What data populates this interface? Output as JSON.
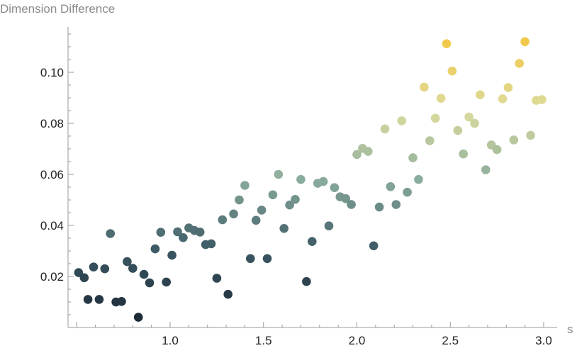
{
  "chart_data": {
    "type": "scatter",
    "title": "",
    "xlabel": "s",
    "ylabel": "Dimension Difference",
    "xlim": [
      0.45,
      3.05
    ],
    "ylim": [
      -0.002,
      0.12
    ],
    "x_ticks_major": [
      1.0,
      1.5,
      2.0,
      2.5,
      3.0
    ],
    "x_tick_labels": [
      "1.0",
      "1.5",
      "2.0",
      "2.5",
      "3.0"
    ],
    "y_ticks_major": [
      0.02,
      0.04,
      0.06,
      0.08,
      0.1
    ],
    "y_tick_labels": [
      "0.02",
      "0.04",
      "0.06",
      "0.08",
      "0.10"
    ],
    "grid": false,
    "legend": "none",
    "color_gradient": [
      "#1c2b38",
      "#3d5a66",
      "#8aac9d",
      "#dcdc9e",
      "#f2c84a"
    ],
    "points": [
      {
        "x": 0.51,
        "y": 0.0215
      },
      {
        "x": 0.54,
        "y": 0.0195
      },
      {
        "x": 0.56,
        "y": 0.011
      },
      {
        "x": 0.59,
        "y": 0.0237
      },
      {
        "x": 0.62,
        "y": 0.011
      },
      {
        "x": 0.65,
        "y": 0.023
      },
      {
        "x": 0.68,
        "y": 0.0368
      },
      {
        "x": 0.71,
        "y": 0.01
      },
      {
        "x": 0.74,
        "y": 0.0102
      },
      {
        "x": 0.77,
        "y": 0.0258
      },
      {
        "x": 0.8,
        "y": 0.0232
      },
      {
        "x": 0.83,
        "y": 0.004
      },
      {
        "x": 0.86,
        "y": 0.0208
      },
      {
        "x": 0.89,
        "y": 0.0175
      },
      {
        "x": 0.92,
        "y": 0.0308
      },
      {
        "x": 0.95,
        "y": 0.0373
      },
      {
        "x": 0.98,
        "y": 0.0178
      },
      {
        "x": 1.01,
        "y": 0.0283
      },
      {
        "x": 1.04,
        "y": 0.0375
      },
      {
        "x": 1.07,
        "y": 0.0352
      },
      {
        "x": 1.1,
        "y": 0.039
      },
      {
        "x": 1.13,
        "y": 0.038
      },
      {
        "x": 1.16,
        "y": 0.0374
      },
      {
        "x": 1.19,
        "y": 0.0325
      },
      {
        "x": 1.22,
        "y": 0.0328
      },
      {
        "x": 1.25,
        "y": 0.0193
      },
      {
        "x": 1.28,
        "y": 0.0422
      },
      {
        "x": 1.31,
        "y": 0.013
      },
      {
        "x": 1.34,
        "y": 0.0445
      },
      {
        "x": 1.37,
        "y": 0.05
      },
      {
        "x": 1.4,
        "y": 0.0557
      },
      {
        "x": 1.43,
        "y": 0.027
      },
      {
        "x": 1.46,
        "y": 0.042
      },
      {
        "x": 1.49,
        "y": 0.046
      },
      {
        "x": 1.52,
        "y": 0.027
      },
      {
        "x": 1.55,
        "y": 0.052
      },
      {
        "x": 1.58,
        "y": 0.06
      },
      {
        "x": 1.61,
        "y": 0.0388
      },
      {
        "x": 1.64,
        "y": 0.048
      },
      {
        "x": 1.67,
        "y": 0.0502
      },
      {
        "x": 1.7,
        "y": 0.058
      },
      {
        "x": 1.73,
        "y": 0.018
      },
      {
        "x": 1.76,
        "y": 0.0337
      },
      {
        "x": 1.79,
        "y": 0.0565
      },
      {
        "x": 1.82,
        "y": 0.0572
      },
      {
        "x": 1.85,
        "y": 0.0398
      },
      {
        "x": 1.88,
        "y": 0.0548
      },
      {
        "x": 1.91,
        "y": 0.0512
      },
      {
        "x": 1.94,
        "y": 0.0505
      },
      {
        "x": 1.97,
        "y": 0.0482
      },
      {
        "x": 2.0,
        "y": 0.0678
      },
      {
        "x": 2.03,
        "y": 0.0702
      },
      {
        "x": 2.06,
        "y": 0.069
      },
      {
        "x": 2.09,
        "y": 0.032
      },
      {
        "x": 2.12,
        "y": 0.0472
      },
      {
        "x": 2.15,
        "y": 0.0778
      },
      {
        "x": 2.18,
        "y": 0.0552
      },
      {
        "x": 2.21,
        "y": 0.0482
      },
      {
        "x": 2.24,
        "y": 0.081
      },
      {
        "x": 2.27,
        "y": 0.053
      },
      {
        "x": 2.3,
        "y": 0.0665
      },
      {
        "x": 2.33,
        "y": 0.058
      },
      {
        "x": 2.36,
        "y": 0.0942
      },
      {
        "x": 2.39,
        "y": 0.0732
      },
      {
        "x": 2.42,
        "y": 0.082
      },
      {
        "x": 2.45,
        "y": 0.0898
      },
      {
        "x": 2.48,
        "y": 0.1112
      },
      {
        "x": 2.51,
        "y": 0.1005
      },
      {
        "x": 2.54,
        "y": 0.0772
      },
      {
        "x": 2.57,
        "y": 0.068
      },
      {
        "x": 2.6,
        "y": 0.0825
      },
      {
        "x": 2.63,
        "y": 0.08
      },
      {
        "x": 2.66,
        "y": 0.0912
      },
      {
        "x": 2.69,
        "y": 0.0618
      },
      {
        "x": 2.72,
        "y": 0.0715
      },
      {
        "x": 2.75,
        "y": 0.0697
      },
      {
        "x": 2.78,
        "y": 0.0896
      },
      {
        "x": 2.81,
        "y": 0.094
      },
      {
        "x": 2.84,
        "y": 0.0735
      },
      {
        "x": 2.87,
        "y": 0.1035
      },
      {
        "x": 2.9,
        "y": 0.112
      },
      {
        "x": 2.93,
        "y": 0.0753
      },
      {
        "x": 2.96,
        "y": 0.089
      },
      {
        "x": 2.99,
        "y": 0.0893
      }
    ]
  }
}
